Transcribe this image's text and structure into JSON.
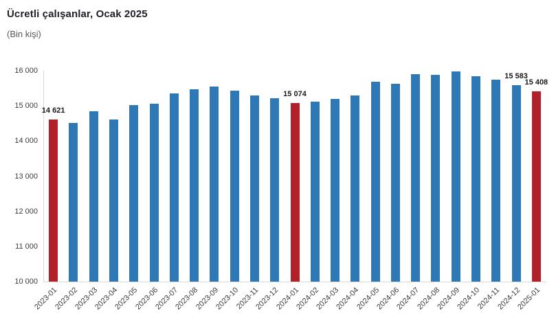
{
  "header": {
    "title": "Ücretli çalışanlar, Ocak 2025",
    "subtitle": "(Bin kişi)"
  },
  "chart_data": {
    "type": "bar",
    "title": "Ücretli çalışanlar, Ocak 2025",
    "subtitle": "(Bin kişi)",
    "xlabel": "",
    "ylabel": "",
    "ylim": [
      10000,
      16000
    ],
    "grid": false,
    "legend": false,
    "categories": [
      "2023-01",
      "2023-02",
      "2023-03",
      "2023-04",
      "2023-05",
      "2023-06",
      "2023-07",
      "2023-08",
      "2023-09",
      "2023-10",
      "2023-11",
      "2023-12",
      "2024-01",
      "2024-02",
      "2024-03",
      "2024-04",
      "2024-05",
      "2024-06",
      "2024-07",
      "2024-08",
      "2024-09",
      "2024-10",
      "2024-11",
      "2024-12",
      "2025-01"
    ],
    "values": [
      14621,
      14510,
      14845,
      14615,
      15030,
      15070,
      15360,
      15470,
      15550,
      15440,
      15300,
      15225,
      15074,
      15125,
      15195,
      15290,
      15690,
      15620,
      15900,
      15885,
      15980,
      15850,
      15740,
      15583,
      15408
    ],
    "highlighted_categories": [
      "2023-01",
      "2024-01",
      "2025-01"
    ],
    "data_labels": [
      {
        "category": "2023-01",
        "text": "14 621"
      },
      {
        "category": "2024-01",
        "text": "15 074"
      },
      {
        "category": "2024-12",
        "text": "15 583"
      },
      {
        "category": "2025-01",
        "text": "15 408"
      }
    ],
    "yticks": [
      {
        "value": 10000,
        "label": "10 000"
      },
      {
        "value": 11000,
        "label": "11 000"
      },
      {
        "value": 12000,
        "label": "12 000"
      },
      {
        "value": 13000,
        "label": "13 000"
      },
      {
        "value": 14000,
        "label": "14 000"
      },
      {
        "value": 15000,
        "label": "15 000"
      },
      {
        "value": 16000,
        "label": "16 000"
      }
    ],
    "colors": {
      "bar": "#2E79B5",
      "highlight": "#B02129",
      "axis_line": "#D9D9D9",
      "tick_text": "#3B3B3B",
      "title_text": "#21212B",
      "subtitle_text": "#595959",
      "data_label_text": "#1A1A1A",
      "background": "#FFFFFF"
    }
  }
}
